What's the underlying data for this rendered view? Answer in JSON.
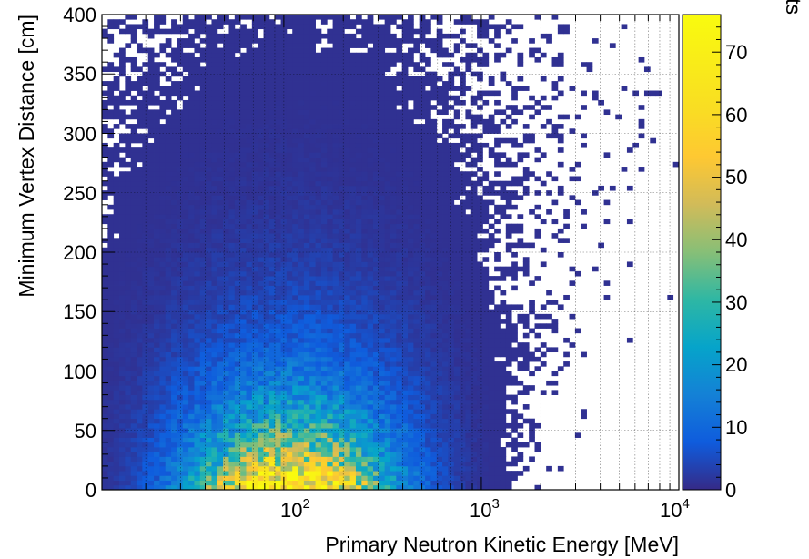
{
  "chart_data": {
    "type": "heatmap",
    "title": "",
    "xlabel": "Primary Neutron Kinetic Energy [MeV]",
    "ylabel": "Minimum Vertex Distance [cm]",
    "zlabel": "Number of Hits",
    "x_scale": "log",
    "xlim": [
      12,
      10000
    ],
    "ylim": [
      0,
      400
    ],
    "zlim": [
      0,
      76
    ],
    "x_ticks": [
      {
        "value": 100,
        "base": "10",
        "exp": "2"
      },
      {
        "value": 1000,
        "base": "10",
        "exp": "3"
      },
      {
        "value": 10000,
        "base": "10",
        "exp": "4"
      }
    ],
    "y_ticks": [
      "0",
      "50",
      "100",
      "150",
      "200",
      "250",
      "300",
      "350",
      "400"
    ],
    "z_ticks": [
      "0",
      "10",
      "20",
      "30",
      "40",
      "50",
      "60",
      "70"
    ],
    "grid": true,
    "colormap": "parula",
    "peak": {
      "energy_mev": 110,
      "distance_cm": 10,
      "hits": 75
    },
    "x_bins": 100,
    "y_bins": 100
  }
}
